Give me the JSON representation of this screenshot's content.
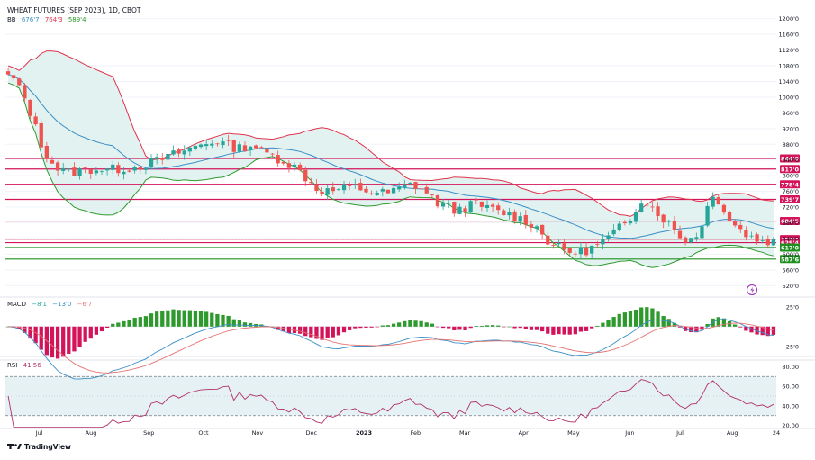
{
  "legend": {
    "title": "WHEAT FUTURES (SEP 2023), 1D, CBOT",
    "bb_label": "BB",
    "bb_values": [
      "676'7",
      "764'3",
      "589'4"
    ],
    "macd_label": "MACD",
    "macd_values": [
      "−8'1",
      "−13'0",
      "−6'7"
    ],
    "rsi_label": "RSI",
    "rsi_value": "41.56"
  },
  "brand": {
    "text": "TradingView",
    "logo": "tv-logo-icon"
  },
  "colors": {
    "bull": "#26a69a",
    "bear": "#ef5350",
    "bb_upper": "#e0334c",
    "bb_lower": "#2e9a2e",
    "bb_basis": "#3a8fc6",
    "bb_fill": "#dff1ef",
    "level_red": "#d4145a",
    "level_green": "#1f8f1f",
    "macd": "#3a8fc6",
    "signal": "#e57373",
    "rsi": "#b0306a",
    "rsi_band": "#e6f1f3"
  },
  "price_axis": {
    "ticks": [
      "1200'0",
      "1160'0",
      "1120'0",
      "1080'0",
      "1040'0",
      "1000'0",
      "960'0",
      "920'0",
      "880'0",
      "840'0",
      "800'0",
      "760'0",
      "720'0",
      "680'0",
      "640'0",
      "600'0",
      "560'0",
      "520'0"
    ]
  },
  "macd_axis": {
    "ticks": [
      "25'0",
      "−25'0"
    ]
  },
  "rsi_axis": {
    "ticks": [
      "80.00",
      "60.00",
      "40.00",
      "20.00"
    ]
  },
  "time_axis": {
    "labels": [
      "Jul",
      "Aug",
      "Sep",
      "Oct",
      "Nov",
      "Dec",
      "2023",
      "Feb",
      "Mar",
      "Apr",
      "May",
      "Jun",
      "Jul",
      "Aug",
      "24"
    ]
  },
  "chart_data": [
    {
      "type": "candlestick",
      "series": [
        "price",
        "bb_upper",
        "bb_basis",
        "bb_lower"
      ],
      "title": "WHEAT FUTURES (SEP 2023), 1D, CBOT",
      "ylim": [
        500,
        1220
      ],
      "levels": [
        {
          "value": 844,
          "label": "844'0",
          "color": "red"
        },
        {
          "value": 817,
          "label": "817'0",
          "color": "red"
        },
        {
          "value": 778,
          "label": "778'4",
          "color": "red"
        },
        {
          "value": 739.7,
          "label": "739'7",
          "color": "red"
        },
        {
          "value": 684.5,
          "label": "684'5",
          "color": "red"
        },
        {
          "value": 638.3,
          "label": "638'3",
          "color": "red"
        },
        {
          "value": 629.4,
          "label": "629'4",
          "color": "red"
        },
        {
          "value": 617,
          "label": "617'0",
          "color": "green"
        },
        {
          "value": 587.6,
          "label": "587'6",
          "color": "green"
        }
      ],
      "path_points": [
        [
          0,
          1065
        ],
        [
          6,
          1030
        ],
        [
          12,
          990
        ],
        [
          16,
          950
        ],
        [
          22,
          880
        ],
        [
          28,
          840
        ],
        [
          34,
          815
        ],
        [
          40,
          808
        ],
        [
          48,
          812
        ],
        [
          58,
          818
        ],
        [
          68,
          815
        ],
        [
          80,
          820
        ],
        [
          90,
          826
        ],
        [
          100,
          838
        ],
        [
          110,
          852
        ],
        [
          120,
          866
        ],
        [
          130,
          880
        ],
        [
          140,
          890
        ],
        [
          148,
          876
        ],
        [
          156,
          870
        ],
        [
          164,
          880
        ],
        [
          170,
          862
        ],
        [
          178,
          850
        ],
        [
          186,
          836
        ],
        [
          194,
          818
        ],
        [
          200,
          795
        ],
        [
          206,
          770
        ],
        [
          212,
          760
        ],
        [
          220,
          763
        ],
        [
          228,
          770
        ],
        [
          234,
          770
        ],
        [
          240,
          762
        ],
        [
          248,
          756
        ],
        [
          256,
          756
        ],
        [
          262,
          765
        ],
        [
          270,
          778
        ],
        [
          276,
          772
        ],
        [
          282,
          752
        ],
        [
          288,
          732
        ],
        [
          294,
          722
        ],
        [
          300,
          712
        ],
        [
          306,
          718
        ],
        [
          312,
          728
        ],
        [
          318,
          722
        ],
        [
          326,
          712
        ],
        [
          332,
          706
        ],
        [
          338,
          700
        ],
        [
          344,
          690
        ],
        [
          352,
          678
        ],
        [
          358,
          656
        ],
        [
          362,
          636
        ],
        [
          368,
          620
        ],
        [
          374,
          608
        ],
        [
          382,
          605
        ],
        [
          390,
          612
        ],
        [
          398,
          628
        ],
        [
          404,
          645
        ],
        [
          410,
          665
        ],
        [
          416,
          678
        ],
        [
          422,
          720
        ],
        [
          426,
          746
        ],
        [
          432,
          720
        ],
        [
          438,
          700
        ],
        [
          444,
          676
        ],
        [
          450,
          648
        ],
        [
          456,
          636
        ],
        [
          462,
          646
        ],
        [
          468,
          700
        ],
        [
          472,
          748
        ],
        [
          478,
          736
        ],
        [
          484,
          690
        ],
        [
          490,
          668
        ],
        [
          496,
          650
        ],
        [
          502,
          638
        ],
        [
          508,
          635
        ],
        [
          514,
          632
        ]
      ]
    },
    {
      "type": "bar",
      "series": [
        "macd",
        "signal",
        "histogram"
      ],
      "ylim": [
        -40,
        35
      ]
    },
    {
      "type": "line",
      "series": [
        "rsi"
      ],
      "ylim": [
        15,
        85
      ],
      "band": [
        30,
        70
      ],
      "midline": 50,
      "last": 41.56
    }
  ]
}
